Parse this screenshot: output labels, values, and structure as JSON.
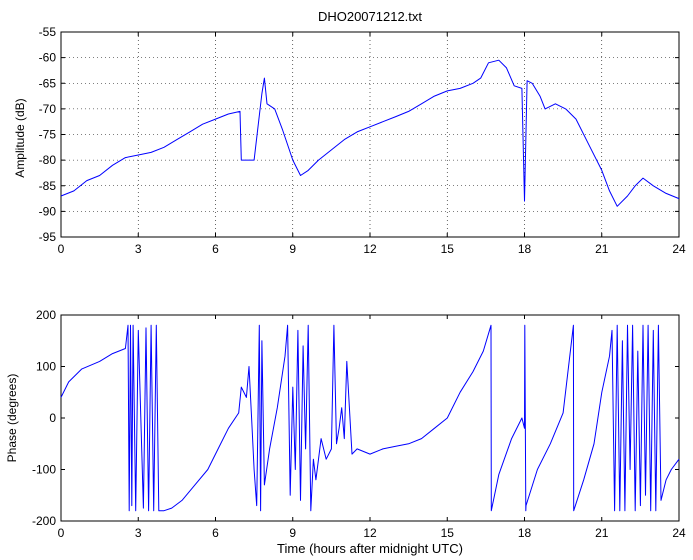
{
  "title": "DHO20071212.txt",
  "chart_data": [
    {
      "type": "line",
      "title": "DHO20071212.txt",
      "xlabel": "",
      "ylabel": "Amplitude (dB)",
      "xlim": [
        0,
        24
      ],
      "ylim": [
        -95,
        -55
      ],
      "xticks": [
        0,
        3,
        6,
        9,
        12,
        15,
        18,
        21,
        24
      ],
      "yticks": [
        -95,
        -90,
        -85,
        -80,
        -75,
        -70,
        -65,
        -60,
        -55
      ],
      "grid": true,
      "color": "#0000ff",
      "series": [
        {
          "x": [
            0,
            0.5,
            1,
            1.5,
            2,
            2.5,
            3,
            3.5,
            4,
            4.5,
            5,
            5.5,
            6,
            6.5,
            6.95,
            7.0,
            7.5,
            7.8,
            7.9,
            8.0,
            8.3,
            8.6,
            9.0,
            9.3,
            9.6,
            10,
            10.5,
            11,
            11.5,
            12,
            12.5,
            13,
            13.5,
            14,
            14.5,
            15,
            15.5,
            16,
            16.3,
            16.6,
            17,
            17.3,
            17.6,
            17.9,
            18.0,
            18.1,
            18.3,
            18.6,
            18.8,
            19.2,
            19.6,
            20,
            20.5,
            21,
            21.3,
            21.6,
            22,
            22.3,
            22.6,
            23,
            23.5,
            24
          ],
          "y": [
            -87,
            -86,
            -84,
            -83,
            -81,
            -79.5,
            -79,
            -78.5,
            -77.5,
            -76,
            -74.5,
            -73,
            -72,
            -71,
            -70.5,
            -80,
            -80,
            -67,
            -64,
            -69,
            -70,
            -74,
            -80,
            -83,
            -82,
            -80,
            -78,
            -76,
            -74.5,
            -73.5,
            -72.5,
            -71.5,
            -70.5,
            -69,
            -67.5,
            -66.5,
            -66,
            -65,
            -64,
            -61,
            -60.5,
            -62,
            -65.5,
            -66,
            -88,
            -64.5,
            -65,
            -67.5,
            -70,
            -69,
            -70,
            -72,
            -77,
            -82,
            -86,
            -89,
            -87,
            -85,
            -83.5,
            -85,
            -86.5,
            -87.5
          ]
        }
      ]
    },
    {
      "type": "line",
      "title": "",
      "xlabel": "Time (hours after midnight UTC)",
      "ylabel": "Phase (degrees)",
      "xlim": [
        0,
        24
      ],
      "ylim": [
        -200,
        200
      ],
      "xticks": [
        0,
        3,
        6,
        9,
        12,
        15,
        18,
        21,
        24
      ],
      "yticks": [
        -200,
        -100,
        0,
        100,
        200
      ],
      "grid": false,
      "color": "#0000ff",
      "series": [
        {
          "x": [
            0,
            0.3,
            0.8,
            1.5,
            2.0,
            2.5,
            2.6,
            2.65,
            2.7,
            2.75,
            2.8,
            2.9,
            3.0,
            3.2,
            3.3,
            3.4,
            3.5,
            3.6,
            3.7,
            3.8,
            3.9,
            4.0,
            4.3,
            4.7,
            5.2,
            5.7,
            6.1,
            6.5,
            6.9,
            7.0,
            7.2,
            7.3,
            7.4,
            7.5,
            7.6,
            7.7,
            7.75,
            7.8,
            7.9,
            8.1,
            8.4,
            8.7,
            8.8,
            8.9,
            9.0,
            9.1,
            9.2,
            9.3,
            9.4,
            9.5,
            9.6,
            9.7,
            9.8,
            9.9,
            10.1,
            10.3,
            10.5,
            10.6,
            10.7,
            10.8,
            10.9,
            11.0,
            11.1,
            11.3,
            11.5,
            12.0,
            12.5,
            13.0,
            13.5,
            14.0,
            14.5,
            15.0,
            15.5,
            16.0,
            16.4,
            16.7,
            16.71,
            17.0,
            17.5,
            17.9,
            18.0,
            18.01,
            18.05,
            18.06,
            18.5,
            19.0,
            19.5,
            19.9,
            19.91,
            20.3,
            20.7,
            21.0,
            21.3,
            21.4,
            21.5,
            21.6,
            21.7,
            21.8,
            21.9,
            22.0,
            22.1,
            22.2,
            22.3,
            22.4,
            22.5,
            22.6,
            22.7,
            22.8,
            22.9,
            23.0,
            23.1,
            23.2,
            23.3,
            23.5,
            23.7,
            24
          ],
          "y": [
            40,
            70,
            95,
            110,
            125,
            135,
            180,
            -180,
            180,
            -170,
            180,
            -180,
            170,
            -175,
            175,
            -180,
            180,
            -180,
            180,
            -180,
            -180,
            -180,
            -175,
            -160,
            -130,
            -100,
            -60,
            -20,
            10,
            60,
            40,
            100,
            0,
            -100,
            -170,
            180,
            -180,
            150,
            -130,
            -60,
            20,
            120,
            180,
            -150,
            60,
            -100,
            170,
            -160,
            140,
            -60,
            180,
            -180,
            -80,
            -120,
            -40,
            -80,
            -60,
            180,
            -50,
            -20,
            20,
            -40,
            110,
            -70,
            -60,
            -70,
            -60,
            -55,
            -50,
            -40,
            -20,
            0,
            50,
            90,
            130,
            180,
            -180,
            -110,
            -40,
            0,
            -20,
            180,
            -180,
            -170,
            -100,
            -50,
            10,
            180,
            -180,
            -120,
            -50,
            50,
            120,
            170,
            -180,
            180,
            -180,
            150,
            -180,
            180,
            -100,
            180,
            -180,
            130,
            -170,
            180,
            -150,
            180,
            -180,
            170,
            -180,
            180,
            -160,
            -120,
            -100,
            -80
          ]
        }
      ]
    }
  ]
}
